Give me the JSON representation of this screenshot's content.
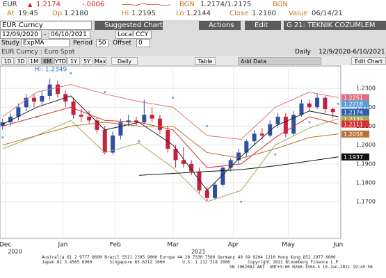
{
  "header": {
    "ticker": "EUR",
    "price": "1.2174",
    "change": "-.0006",
    "src1": "BGN",
    "bid_ask": "1.2174/1.2175",
    "src2": "BGN",
    "at_label": "At",
    "at": "19:45",
    "op_label": "Op",
    "op": "1.2180",
    "hi_label": "Hi",
    "hi": "1.2195",
    "lo_label": "Lo",
    "lo": "1.2144",
    "close_label": "Close",
    "close": "1.2180",
    "value_label": "Value",
    "value": "06/14/21"
  },
  "toolbar": {
    "security": "EUR Curncy",
    "buttons": [
      "Suggested Charts",
      "Actions",
      "Edit",
      "G 21: TEKNIK COZUMLEM"
    ]
  },
  "settings": {
    "start": "12/09/2020",
    "dash": "-",
    "end": "06/10/2021",
    "currency": "Local CCY",
    "study_label": "Study",
    "study": "ExpMA",
    "period_label": "Period",
    "period": "50",
    "offset_label": "Offset",
    "offset": "0"
  },
  "info": {
    "name": "EUR Curncy : Euro Spot",
    "freq": "Daily",
    "range": "12/9/2020-6/10/2021"
  },
  "tabs": {
    "ranges": [
      "1D",
      "3D",
      "1M",
      "6M",
      "YTD",
      "1Y",
      "5Y",
      "Max"
    ],
    "freq": "Daily",
    "table": "Table",
    "add": "Add Data",
    "edit": "Edit Chart"
  },
  "chart": {
    "type": "candlestick",
    "hi_annotation": "Hi: 1.2349",
    "up_color": "#2f4f9f",
    "down_color": "#c8203c",
    "xlim": [
      0,
      130
    ],
    "ylim": [
      1.1506,
      1.2418
    ],
    "xticks": [
      {
        "value": 2,
        "label": "Dec"
      },
      {
        "value": 24,
        "label": "Jan"
      },
      {
        "value": 44,
        "label": "Feb"
      },
      {
        "value": 66,
        "label": "Mar"
      },
      {
        "value": 89,
        "label": "Apr"
      },
      {
        "value": 110,
        "label": "May"
      },
      {
        "value": 129,
        "label": "Jun"
      }
    ],
    "years": [
      {
        "value": 2,
        "label": "2020"
      },
      {
        "value": 72,
        "label": "2021"
      }
    ],
    "yticks": [
      {
        "value": 1.17,
        "label": "1.1700"
      },
      {
        "value": 1.18,
        "label": "1.1800"
      },
      {
        "value": 1.19,
        "label": "1.1900"
      },
      {
        "value": 1.2,
        "label": "1.2000"
      },
      {
        "value": 1.21,
        "label": "1.2100"
      },
      {
        "value": 1.22,
        "label": "1.2200"
      },
      {
        "value": 1.23,
        "label": "1.2300"
      }
    ],
    "candles": [
      {
        "x": 1,
        "o": 1.21,
        "h": 1.214,
        "l": 1.208,
        "c": 1.212
      },
      {
        "x": 4,
        "o": 1.212,
        "h": 1.217,
        "l": 1.21,
        "c": 1.215
      },
      {
        "x": 7,
        "o": 1.215,
        "h": 1.222,
        "l": 1.213,
        "c": 1.22
      },
      {
        "x": 10,
        "o": 1.22,
        "h": 1.227,
        "l": 1.218,
        "c": 1.225
      },
      {
        "x": 13,
        "o": 1.225,
        "h": 1.227,
        "l": 1.22,
        "c": 1.223
      },
      {
        "x": 16,
        "o": 1.223,
        "h": 1.229,
        "l": 1.221,
        "c": 1.226
      },
      {
        "x": 19,
        "o": 1.226,
        "h": 1.2349,
        "l": 1.224,
        "c": 1.232
      },
      {
        "x": 22,
        "o": 1.232,
        "h": 1.234,
        "l": 1.225,
        "c": 1.227
      },
      {
        "x": 25,
        "o": 1.227,
        "h": 1.229,
        "l": 1.22,
        "c": 1.223
      },
      {
        "x": 28,
        "o": 1.223,
        "h": 1.225,
        "l": 1.214,
        "c": 1.216
      },
      {
        "x": 31,
        "o": 1.216,
        "h": 1.219,
        "l": 1.212,
        "c": 1.215
      },
      {
        "x": 34,
        "o": 1.215,
        "h": 1.218,
        "l": 1.211,
        "c": 1.213
      },
      {
        "x": 37,
        "o": 1.213,
        "h": 1.215,
        "l": 1.206,
        "c": 1.208
      },
      {
        "x": 40,
        "o": 1.208,
        "h": 1.21,
        "l": 1.195,
        "c": 1.196
      },
      {
        "x": 43,
        "o": 1.196,
        "h": 1.207,
        "l": 1.195,
        "c": 1.205
      },
      {
        "x": 46,
        "o": 1.205,
        "h": 1.214,
        "l": 1.203,
        "c": 1.212
      },
      {
        "x": 49,
        "o": 1.212,
        "h": 1.216,
        "l": 1.21,
        "c": 1.213
      },
      {
        "x": 52,
        "o": 1.213,
        "h": 1.215,
        "l": 1.21,
        "c": 1.212
      },
      {
        "x": 55,
        "o": 1.212,
        "h": 1.224,
        "l": 1.211,
        "c": 1.216
      },
      {
        "x": 58,
        "o": 1.216,
        "h": 1.22,
        "l": 1.212,
        "c": 1.214
      },
      {
        "x": 61,
        "o": 1.214,
        "h": 1.216,
        "l": 1.206,
        "c": 1.208
      },
      {
        "x": 64,
        "o": 1.208,
        "h": 1.21,
        "l": 1.196,
        "c": 1.198
      },
      {
        "x": 67,
        "o": 1.198,
        "h": 1.2,
        "l": 1.188,
        "c": 1.192
      },
      {
        "x": 70,
        "o": 1.192,
        "h": 1.199,
        "l": 1.188,
        "c": 1.19
      },
      {
        "x": 73,
        "o": 1.19,
        "h": 1.192,
        "l": 1.184,
        "c": 1.186
      },
      {
        "x": 76,
        "o": 1.186,
        "h": 1.188,
        "l": 1.174,
        "c": 1.176
      },
      {
        "x": 79,
        "o": 1.176,
        "h": 1.178,
        "l": 1.1704,
        "c": 1.172
      },
      {
        "x": 82,
        "o": 1.172,
        "h": 1.18,
        "l": 1.171,
        "c": 1.179
      },
      {
        "x": 85,
        "o": 1.179,
        "h": 1.189,
        "l": 1.178,
        "c": 1.188
      },
      {
        "x": 88,
        "o": 1.188,
        "h": 1.193,
        "l": 1.186,
        "c": 1.192
      },
      {
        "x": 91,
        "o": 1.192,
        "h": 1.198,
        "l": 1.19,
        "c": 1.196
      },
      {
        "x": 94,
        "o": 1.196,
        "h": 1.203,
        "l": 1.194,
        "c": 1.202
      },
      {
        "x": 97,
        "o": 1.202,
        "h": 1.208,
        "l": 1.2,
        "c": 1.206
      },
      {
        "x": 100,
        "o": 1.206,
        "h": 1.209,
        "l": 1.203,
        "c": 1.205
      },
      {
        "x": 103,
        "o": 1.205,
        "h": 1.213,
        "l": 1.204,
        "c": 1.211
      },
      {
        "x": 106,
        "o": 1.211,
        "h": 1.217,
        "l": 1.209,
        "c": 1.215
      },
      {
        "x": 109,
        "o": 1.215,
        "h": 1.217,
        "l": 1.204,
        "c": 1.206
      },
      {
        "x": 112,
        "o": 1.206,
        "h": 1.218,
        "l": 1.205,
        "c": 1.216
      },
      {
        "x": 115,
        "o": 1.216,
        "h": 1.224,
        "l": 1.215,
        "c": 1.222
      },
      {
        "x": 118,
        "o": 1.222,
        "h": 1.224,
        "l": 1.218,
        "c": 1.22
      },
      {
        "x": 121,
        "o": 1.22,
        "h": 1.227,
        "l": 1.219,
        "c": 1.225
      },
      {
        "x": 124,
        "o": 1.225,
        "h": 1.226,
        "l": 1.217,
        "c": 1.219
      },
      {
        "x": 127,
        "o": 1.219,
        "h": 1.22,
        "l": 1.2144,
        "c": 1.2174
      }
    ],
    "last_price": 1.2174,
    "last_color": "#2f5fb0",
    "x": [
      1,
      14,
      27,
      40,
      53,
      66,
      79,
      92,
      105,
      118,
      129
    ],
    "series": [
      {
        "color": "#e07080",
        "style": "line",
        "box": true,
        "values": [
          1.215,
          1.228,
          1.232,
          1.227,
          1.223,
          1.22,
          1.205,
          1.203,
          1.22,
          1.228,
          1.2251
        ]
      },
      {
        "color": "#5aa0d8",
        "style": "dots",
        "box": true,
        "values": [
          1.204,
          1.215,
          1.238,
          1.228,
          1.202,
          1.225,
          1.21,
          1.17,
          1.195,
          1.212,
          1.2218
        ]
      },
      {
        "color": "#a8a860",
        "style": "line",
        "box": true,
        "values": [
          1.198,
          1.205,
          1.213,
          1.196,
          1.201,
          1.188,
          1.17,
          1.176,
          1.2,
          1.209,
          1.2139
        ]
      },
      {
        "color": "#d83030",
        "style": "line",
        "box": true,
        "values": [
          1.21,
          1.215,
          1.22,
          1.213,
          1.212,
          1.208,
          1.188,
          1.19,
          1.204,
          1.215,
          1.2111
        ]
      },
      {
        "color": "#b87333",
        "style": "line",
        "box": true,
        "values": [
          1.2,
          1.205,
          1.21,
          1.212,
          1.21,
          1.21,
          1.196,
          1.193,
          1.198,
          1.204,
          1.2058
        ]
      },
      {
        "color": "#111111",
        "style": "line",
        "box": true,
        "values": [
          null,
          null,
          null,
          null,
          1.184,
          1.185,
          1.186,
          1.187,
          1.189,
          1.1915,
          1.1937
        ]
      },
      {
        "color": "#222222",
        "style": "line",
        "box": false,
        "values": [
          1.211,
          1.22,
          1.226,
          1.208,
          1.212,
          1.2,
          1.176,
          1.194,
          1.21,
          1.218,
          1.215
        ]
      }
    ]
  },
  "footer": {
    "line1": "Australia 61 2 9777 8600 Brazil 5511 2395 9000 Europe 44 20 7330 7500 Germany 49 69 9204 1210 Hong Kong 852 2977 6000",
    "line2": "Japan 81 3 4565 8900       Singapore 65 6212 1000       U.S. 1 212 318 2000       Copyright 2021 Bloomberg Finance L.P.",
    "line3": "SN 1062082 AKT  GMT+3:00 H260-1594-5 10-Jun-2021 19:45:56"
  }
}
